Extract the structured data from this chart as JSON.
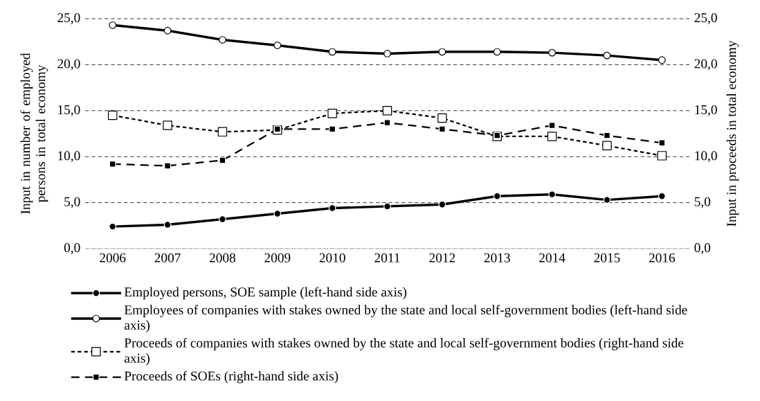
{
  "chart_data": {
    "type": "line",
    "categories": [
      "2006",
      "2007",
      "2008",
      "2009",
      "2010",
      "2011",
      "2012",
      "2013",
      "2014",
      "2015",
      "2016"
    ],
    "ylabel": "Input in number of employed persons in total economy",
    "y2label": "Input in proceeds in total economy",
    "ylim": [
      0,
      25
    ],
    "yticks": [
      {
        "value": 0,
        "label": "0,0"
      },
      {
        "value": 5,
        "label": "5,0"
      },
      {
        "value": 10,
        "label": "10,0"
      },
      {
        "value": 15,
        "label": "15,0"
      },
      {
        "value": 20,
        "label": "20,0"
      },
      {
        "value": 25,
        "label": "25,0"
      }
    ],
    "y2lim": [
      0,
      25
    ],
    "y2ticks": [
      {
        "value": 0,
        "label": "0,0"
      },
      {
        "value": 5,
        "label": "5,0"
      },
      {
        "value": 10,
        "label": "10,0"
      },
      {
        "value": 15,
        "label": "15,0"
      },
      {
        "value": 20,
        "label": "20,0"
      },
      {
        "value": 25,
        "label": "25,0"
      }
    ],
    "grid": "y",
    "legend": "bottom",
    "series": [
      {
        "name": "Employed persons, SOE sample (left-hand side axis)",
        "color": "#000000",
        "marker": "circle",
        "line_style": "solid",
        "values": [
          2.4,
          2.6,
          3.2,
          3.8,
          4.4,
          4.6,
          4.8,
          5.7,
          5.9,
          5.3,
          5.7
        ]
      },
      {
        "name": "Employees of companies with stakes owned by the state and local self-government bodies (left-hand side axis)",
        "color": "#000000",
        "marker": "circle",
        "line_style": "solid",
        "values": [
          24.3,
          23.7,
          22.7,
          22.1,
          21.4,
          21.2,
          21.4,
          21.4,
          21.3,
          21.0,
          20.5
        ]
      },
      {
        "name": "Proceeds of companies with stakes owned by the state and local self-government bodies (right-hand side axis)",
        "color": "#000000",
        "marker": "square",
        "line_style": "dashed",
        "axis": "y2",
        "values": [
          14.5,
          13.4,
          12.7,
          12.9,
          14.7,
          15.0,
          14.2,
          12.2,
          12.2,
          11.2,
          10.1
        ]
      },
      {
        "name": "Proceeds of SOEs (right-hand side axis)",
        "color": "#000000",
        "marker": "square",
        "line_style": "dashed",
        "axis": "y2",
        "values": [
          9.2,
          9.0,
          9.6,
          13.0,
          13.0,
          13.7,
          13.0,
          12.3,
          13.4,
          12.3,
          11.5
        ]
      }
    ]
  }
}
